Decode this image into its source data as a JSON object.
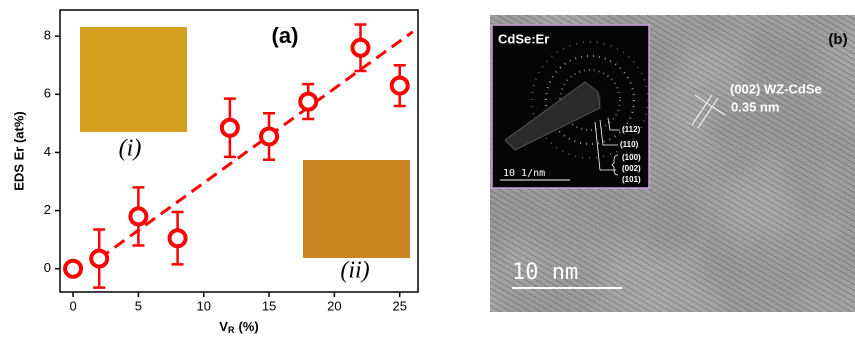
{
  "chart_data": {
    "type": "scatter",
    "panel_label": "(a)",
    "y_label": "EDS Er (at%)",
    "x_label": "V",
    "x_label_sub": "R",
    "x_label_unit": "(%)",
    "x": [
      0,
      2,
      5,
      8,
      12,
      15,
      18,
      22,
      25
    ],
    "series": [
      {
        "color": "#ff0000",
        "values": [
          0,
          0.35,
          1.8,
          1.05,
          4.85,
          4.55,
          5.75,
          7.6,
          6.3
        ],
        "errors": [
          0.05,
          1.0,
          1.0,
          0.9,
          1.0,
          0.8,
          0.6,
          0.8,
          0.7
        ]
      }
    ],
    "fit": {
      "color": "#ff0000",
      "x": [
        2,
        26
      ],
      "values": [
        0.35,
        8.15
      ]
    },
    "xlim": [
      -1,
      26.4
    ],
    "ylim": [
      -0.8,
      8.9
    ],
    "xticks": [
      0,
      5,
      10,
      15,
      20,
      25
    ],
    "yticks": [
      0,
      2,
      4,
      6,
      8
    ],
    "insets": [
      {
        "label": "(i)",
        "color": "#d6a01e"
      },
      {
        "label": "(ii)",
        "color": "#c98420"
      }
    ]
  },
  "tem_image": {
    "panel_label": "(b)",
    "lattice_label": "(002) WZ-CdSe",
    "spacing_label": "0.35 nm",
    "scale_bar": "10 nm",
    "inset": {
      "title": "CdSe:Er",
      "scale_bar": "10 1/nm",
      "rings": [
        "(112)",
        "(110)",
        "(100)",
        "(002)",
        "(101)"
      ]
    }
  }
}
